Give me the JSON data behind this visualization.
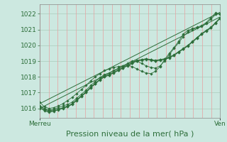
{
  "bg_color": "#cce8e0",
  "plot_bg_color": "#cce8e0",
  "grid_color_h": "#aaccbb",
  "grid_color_v": "#e8a0a0",
  "line_color": "#2d6e3a",
  "marker_color": "#2d6e3a",
  "xlabel": "Pression niveau de la mer( hPa )",
  "xlabel_fontsize": 8,
  "tick_label_color": "#2d6e3a",
  "tick_fontsize": 6.5,
  "ylim": [
    1015.4,
    1022.6
  ],
  "yticks": [
    1016,
    1017,
    1018,
    1019,
    1020,
    1021,
    1022
  ],
  "x_start_label": "Merreu",
  "x_end_label": "Ven",
  "n_points": 40,
  "series": [
    [
      1016.0,
      1015.9,
      1015.8,
      1015.85,
      1015.9,
      1016.0,
      1016.1,
      1016.25,
      1016.5,
      1016.75,
      1017.0,
      1017.3,
      1017.55,
      1017.8,
      1018.0,
      1018.1,
      1018.25,
      1018.4,
      1018.55,
      1018.7,
      1018.85,
      1019.0,
      1019.05,
      1019.1,
      1019.05,
      1019.0,
      1019.05,
      1019.1,
      1019.2,
      1019.35,
      1019.55,
      1019.75,
      1019.95,
      1020.2,
      1020.45,
      1020.7,
      1020.9,
      1021.1,
      1021.4,
      1021.7
    ],
    [
      1016.1,
      1015.95,
      1015.85,
      1015.9,
      1015.95,
      1016.05,
      1016.15,
      1016.3,
      1016.55,
      1016.8,
      1017.05,
      1017.35,
      1017.6,
      1017.85,
      1018.05,
      1018.15,
      1018.3,
      1018.45,
      1018.6,
      1018.75,
      1018.9,
      1019.05,
      1019.1,
      1019.15,
      1019.1,
      1019.05,
      1019.1,
      1019.15,
      1019.25,
      1019.4,
      1019.6,
      1019.8,
      1020.0,
      1020.25,
      1020.5,
      1020.75,
      1020.95,
      1021.15,
      1021.45,
      1021.75
    ],
    [
      1016.05,
      1015.85,
      1015.75,
      1015.82,
      1015.92,
      1016.02,
      1016.12,
      1016.28,
      1016.52,
      1016.78,
      1017.02,
      1017.32,
      1017.57,
      1017.82,
      1018.02,
      1018.12,
      1018.27,
      1018.42,
      1018.57,
      1018.72,
      1018.87,
      1019.02,
      1019.07,
      1019.12,
      1019.07,
      1019.02,
      1019.07,
      1019.12,
      1019.22,
      1019.37,
      1019.57,
      1019.77,
      1019.97,
      1020.22,
      1020.47,
      1020.72,
      1020.92,
      1021.12,
      1021.42,
      1021.72
    ],
    [
      1016.15,
      1016.0,
      1015.9,
      1015.95,
      1016.05,
      1016.15,
      1016.25,
      1016.4,
      1016.65,
      1016.9,
      1017.15,
      1017.45,
      1017.7,
      1017.95,
      1018.15,
      1018.25,
      1018.4,
      1018.55,
      1018.7,
      1018.85,
      1019.0,
      1019.0,
      1018.85,
      1018.7,
      1018.6,
      1018.55,
      1018.7,
      1019.0,
      1019.4,
      1019.8,
      1020.15,
      1020.55,
      1020.85,
      1021.0,
      1021.1,
      1021.2,
      1021.4,
      1021.65,
      1021.95,
      1022.0
    ],
    [
      1016.4,
      1016.1,
      1016.0,
      1016.05,
      1016.15,
      1016.3,
      1016.5,
      1016.7,
      1016.95,
      1017.2,
      1017.45,
      1017.75,
      1018.0,
      1018.2,
      1018.4,
      1018.5,
      1018.6,
      1018.65,
      1018.7,
      1018.75,
      1018.65,
      1018.5,
      1018.35,
      1018.25,
      1018.2,
      1018.35,
      1018.65,
      1019.1,
      1019.5,
      1019.85,
      1020.25,
      1020.7,
      1020.95,
      1021.05,
      1021.15,
      1021.25,
      1021.45,
      1021.75,
      1022.05,
      1021.95
    ]
  ],
  "straight_lines": [
    [
      1016.0,
      1021.8
    ],
    [
      1016.3,
      1022.1
    ]
  ]
}
